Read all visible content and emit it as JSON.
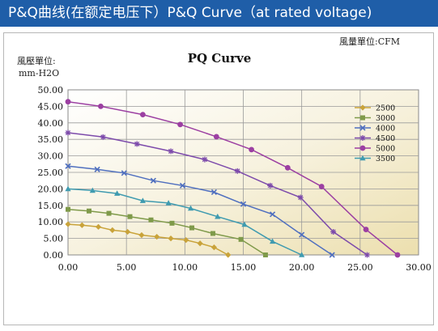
{
  "header": {
    "title": "P&Q曲线(在额定电压下）P&Q Curve（at rated voltage)"
  },
  "chart_data": {
    "type": "line",
    "title": "PQ Curve",
    "xlabel": "風量單位:CFM",
    "ylabel_line1": "風壓單位:",
    "ylabel_line2": "mm-H2O",
    "xlim": [
      0,
      30
    ],
    "ylim": [
      0,
      50
    ],
    "xticks": [
      "0.00",
      "5.00",
      "10.00",
      "15.00",
      "20.00",
      "25.00",
      "30.00"
    ],
    "yticks": [
      "0.00",
      "5.00",
      "10.00",
      "15.00",
      "20.00",
      "25.00",
      "30.00",
      "35.00",
      "40.00",
      "45.00",
      "50.00"
    ],
    "grid": true,
    "legend_position": "right",
    "series": [
      {
        "name": "2500",
        "color": "#c9a33a",
        "marker": "diamond",
        "points": [
          [
            0,
            9.3
          ],
          [
            1.2,
            9.0
          ],
          [
            2.6,
            8.5
          ],
          [
            3.8,
            7.5
          ],
          [
            5.1,
            7.0
          ],
          [
            6.3,
            6.0
          ],
          [
            7.6,
            5.5
          ],
          [
            8.8,
            5.0
          ],
          [
            10.1,
            4.5
          ],
          [
            11.3,
            3.5
          ],
          [
            12.5,
            2.3
          ],
          [
            13.7,
            0
          ]
        ]
      },
      {
        "name": "3000",
        "color": "#7f9a4a",
        "marker": "square",
        "points": [
          [
            0,
            13.8
          ],
          [
            1.8,
            13.3
          ],
          [
            3.5,
            12.6
          ],
          [
            5.3,
            11.6
          ],
          [
            7.1,
            10.6
          ],
          [
            8.9,
            9.6
          ],
          [
            10.6,
            8.2
          ],
          [
            12.4,
            6.5
          ],
          [
            14.8,
            4.7
          ],
          [
            16.9,
            0
          ]
        ]
      },
      {
        "name": "4000",
        "color": "#4f6fbf",
        "marker": "x",
        "points": [
          [
            0,
            26.9
          ],
          [
            2.5,
            25.9
          ],
          [
            4.8,
            24.8
          ],
          [
            7.3,
            22.5
          ],
          [
            9.8,
            21.0
          ],
          [
            12.5,
            19.0
          ],
          [
            15.0,
            15.4
          ],
          [
            17.5,
            12.3
          ],
          [
            20.0,
            6.1
          ],
          [
            22.6,
            0
          ]
        ]
      },
      {
        "name": "4500",
        "color": "#7d4bab",
        "marker": "star",
        "points": [
          [
            0,
            37.0
          ],
          [
            3.0,
            35.7
          ],
          [
            5.9,
            33.6
          ],
          [
            8.8,
            31.4
          ],
          [
            11.7,
            28.9
          ],
          [
            14.5,
            25.4
          ],
          [
            17.3,
            21.0
          ],
          [
            19.9,
            17.4
          ],
          [
            22.7,
            7.0
          ],
          [
            25.6,
            0
          ]
        ]
      },
      {
        "name": "5000",
        "color": "#9c3fa2",
        "marker": "circle",
        "points": [
          [
            0,
            46.4
          ],
          [
            2.8,
            45.0
          ],
          [
            6.4,
            42.5
          ],
          [
            9.6,
            39.5
          ],
          [
            12.7,
            35.8
          ],
          [
            15.7,
            31.9
          ],
          [
            18.8,
            26.4
          ],
          [
            21.7,
            20.7
          ],
          [
            25.5,
            7.7
          ],
          [
            28.2,
            0
          ]
        ]
      },
      {
        "name": "3500",
        "color": "#3f9bb0",
        "marker": "triangle",
        "points": [
          [
            0,
            20.0
          ],
          [
            2.1,
            19.5
          ],
          [
            4.2,
            18.6
          ],
          [
            6.4,
            16.4
          ],
          [
            8.6,
            15.7
          ],
          [
            10.5,
            14.1
          ],
          [
            12.8,
            11.6
          ],
          [
            15.1,
            9.2
          ],
          [
            17.5,
            4.1
          ],
          [
            20.0,
            0
          ]
        ]
      }
    ]
  }
}
